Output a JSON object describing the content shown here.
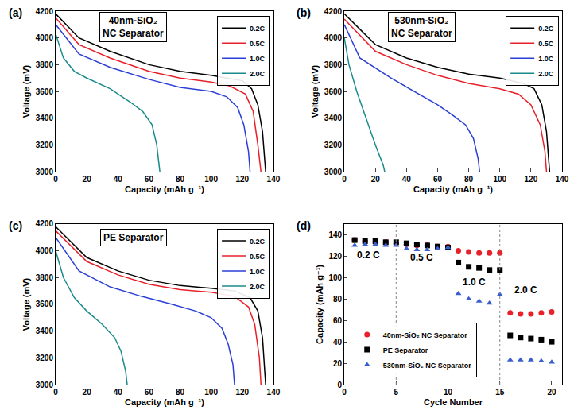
{
  "chart_data": [
    {
      "type": "line",
      "title": "(a)",
      "x_label": "Capacity (mAh g⁻¹)",
      "y_label": "Voltage (mV)",
      "xlim": [
        0,
        140
      ],
      "xticks": [
        0,
        20,
        40,
        60,
        80,
        100,
        120,
        140
      ],
      "ylim": [
        3000,
        4200
      ],
      "yticks": [
        3000,
        3200,
        3400,
        3600,
        3800,
        4000,
        4200
      ],
      "grid": false,
      "legend": "upper right",
      "annotations": [
        {
          "text": [
            "40nm-SiO₂",
            "NC Separator"
          ],
          "x": 50,
          "y": 4080
        }
      ],
      "series": [
        {
          "name": "0.2C",
          "color": "#000000",
          "x": [
            0,
            15,
            35,
            60,
            80,
            100,
            110,
            120,
            126,
            130,
            133,
            135
          ],
          "values": [
            4180,
            4000,
            3900,
            3800,
            3750,
            3720,
            3700,
            3680,
            3620,
            3500,
            3300,
            3000
          ]
        },
        {
          "name": "0.5C",
          "color": "#e8202a",
          "x": [
            0,
            15,
            35,
            60,
            80,
            100,
            112,
            122,
            127,
            130,
            132
          ],
          "values": [
            4150,
            3950,
            3850,
            3750,
            3700,
            3670,
            3640,
            3580,
            3450,
            3200,
            3000
          ]
        },
        {
          "name": "1.0C",
          "color": "#2b3fd6",
          "x": [
            0,
            15,
            35,
            60,
            80,
            100,
            110,
            117,
            121,
            124,
            125
          ],
          "values": [
            4100,
            3880,
            3780,
            3690,
            3630,
            3600,
            3560,
            3480,
            3350,
            3150,
            3000
          ]
        },
        {
          "name": "2.0C",
          "color": "#1a8a8a",
          "x": [
            0,
            5,
            12,
            20,
            35,
            48,
            56,
            62,
            65,
            67
          ],
          "values": [
            4030,
            3850,
            3750,
            3700,
            3620,
            3520,
            3450,
            3350,
            3200,
            3000
          ]
        }
      ]
    },
    {
      "type": "line",
      "title": "(b)",
      "x_label": "Capacity (mAh g⁻¹)",
      "y_label": "Voltage (mV)",
      "xlim": [
        0,
        140
      ],
      "xticks": [
        0,
        20,
        40,
        60,
        80,
        100,
        120,
        140
      ],
      "ylim": [
        3000,
        4200
      ],
      "yticks": [
        3000,
        3200,
        3400,
        3600,
        3800,
        4000,
        4200
      ],
      "grid": false,
      "legend": "upper right",
      "annotations": [
        {
          "text": [
            "530nm-SiO₂",
            "NC Separator"
          ],
          "x": 50,
          "y": 4080
        }
      ],
      "series": [
        {
          "name": "0.2C",
          "color": "#000000",
          "x": [
            0,
            20,
            40,
            60,
            80,
            100,
            115,
            122,
            127,
            130,
            132
          ],
          "values": [
            4180,
            3950,
            3850,
            3780,
            3730,
            3700,
            3660,
            3620,
            3500,
            3300,
            3000
          ]
        },
        {
          "name": "0.5C",
          "color": "#e8202a",
          "x": [
            0,
            20,
            40,
            60,
            80,
            100,
            112,
            120,
            126,
            129,
            130
          ],
          "values": [
            4140,
            3900,
            3800,
            3720,
            3660,
            3620,
            3580,
            3500,
            3350,
            3150,
            3000
          ]
        },
        {
          "name": "1.0C",
          "color": "#2b3fd6",
          "x": [
            0,
            10,
            30,
            45,
            60,
            70,
            78,
            83,
            86,
            87
          ],
          "values": [
            4100,
            3850,
            3700,
            3600,
            3500,
            3420,
            3350,
            3250,
            3100,
            3000
          ]
        },
        {
          "name": "2.0C",
          "color": "#1a8a8a",
          "x": [
            0,
            3,
            8,
            14,
            20,
            25,
            26
          ],
          "values": [
            4000,
            3800,
            3600,
            3400,
            3200,
            3050,
            3000
          ]
        }
      ]
    },
    {
      "type": "line",
      "title": "(c)",
      "x_label": "Capacity (mAh g⁻¹)",
      "y_label": "Voltage (mV)",
      "xlim": [
        0,
        140
      ],
      "xticks": [
        0,
        20,
        40,
        60,
        80,
        100,
        120,
        140
      ],
      "ylim": [
        3000,
        4200
      ],
      "yticks": [
        3000,
        3200,
        3400,
        3600,
        3800,
        4000,
        4200
      ],
      "grid": false,
      "legend": "upper right",
      "annotations": [
        {
          "text": [
            "PE Separator"
          ],
          "x": 50,
          "y": 4100
        }
      ],
      "series": [
        {
          "name": "0.2C",
          "color": "#000000",
          "x": [
            0,
            20,
            40,
            60,
            80,
            100,
            115,
            125,
            130,
            133,
            135
          ],
          "values": [
            4180,
            3950,
            3850,
            3780,
            3740,
            3720,
            3700,
            3650,
            3550,
            3350,
            3000
          ]
        },
        {
          "name": "0.5C",
          "color": "#e8202a",
          "x": [
            0,
            20,
            40,
            60,
            80,
            100,
            115,
            124,
            128,
            131,
            132
          ],
          "values": [
            4150,
            3920,
            3820,
            3750,
            3710,
            3690,
            3660,
            3580,
            3450,
            3200,
            3000
          ]
        },
        {
          "name": "1.0C",
          "color": "#2b3fd6",
          "x": [
            0,
            15,
            35,
            55,
            75,
            90,
            100,
            107,
            111,
            114,
            115
          ],
          "values": [
            4100,
            3850,
            3730,
            3660,
            3600,
            3550,
            3500,
            3420,
            3300,
            3150,
            3000
          ]
        },
        {
          "name": "2.0C",
          "color": "#1a8a8a",
          "x": [
            0,
            5,
            12,
            20,
            30,
            38,
            42,
            45,
            46
          ],
          "values": [
            4000,
            3800,
            3650,
            3550,
            3450,
            3350,
            3250,
            3100,
            3000
          ]
        }
      ]
    },
    {
      "type": "scatter",
      "title": "(d)",
      "x_label": "Cycle Number",
      "y_label": "Capacity (mAh g⁻¹)",
      "xlim": [
        0,
        21
      ],
      "xticks": [
        0,
        5,
        10,
        15,
        20
      ],
      "ylim": [
        0,
        150
      ],
      "yticks": [
        0,
        20,
        40,
        60,
        80,
        100,
        120,
        140
      ],
      "grid": false,
      "legend": "lower left",
      "dividers": [
        5,
        10,
        15
      ],
      "annotations": [
        {
          "text": [
            "0.2 C"
          ],
          "x": 2.3,
          "y": 121
        },
        {
          "text": [
            "0.5 C"
          ],
          "x": 7.5,
          "y": 119
        },
        {
          "text": [
            "1.0 C"
          ],
          "x": 12.5,
          "y": 96
        },
        {
          "text": [
            "2.0 C"
          ],
          "x": 17.5,
          "y": 88
        }
      ],
      "x": [
        1,
        2,
        3,
        4,
        5,
        6,
        7,
        8,
        9,
        10,
        11,
        12,
        13,
        14,
        15,
        16,
        17,
        18,
        19,
        20
      ],
      "series": [
        {
          "name": "40nm-SiO₂ NC Separator",
          "color": "#e8202a",
          "marker": "circle",
          "values": [
            135,
            134,
            133,
            133,
            132,
            131,
            130,
            130,
            129,
            129,
            125,
            124,
            123,
            123,
            123,
            67,
            66,
            66,
            67,
            68
          ]
        },
        {
          "name": "PE Separator",
          "color": "#000000",
          "marker": "square",
          "values": [
            135,
            134,
            134,
            133,
            133,
            132,
            131,
            130,
            129,
            128,
            114,
            110,
            109,
            107,
            107,
            46,
            44,
            43,
            42,
            40
          ]
        },
        {
          "name": "530nm-SiO₂ NC Separator",
          "color": "#3a5fcd",
          "marker": "triangle-up",
          "values": [
            130,
            131,
            131,
            130,
            130,
            127,
            126,
            126,
            127,
            128,
            85,
            80,
            78,
            76,
            84,
            23,
            23,
            23,
            22,
            21
          ]
        }
      ]
    }
  ]
}
